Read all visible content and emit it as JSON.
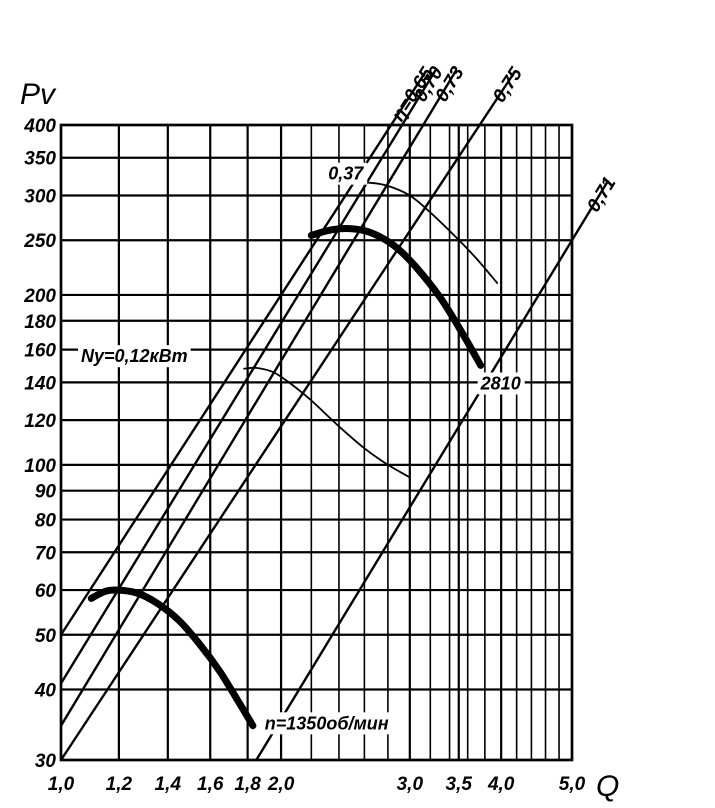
{
  "chart_data": {
    "type": "line",
    "title": "",
    "xlabel": "Q",
    "ylabel": "Pv",
    "x_scale": "log",
    "y_scale": "log",
    "xlim": [
      1.0,
      5.0
    ],
    "ylim": [
      30,
      400
    ],
    "x_ticks": [
      1.0,
      1.2,
      1.4,
      1.6,
      1.8,
      2.0,
      3.0,
      3.5,
      4.0,
      5.0
    ],
    "x_tick_labels": [
      "1,0",
      "1,2",
      "1,4",
      "1,6",
      "1,8",
      "2,0",
      "3,0",
      "3,5",
      "4,0",
      "5,0"
    ],
    "x_minor_grid": [
      2.2,
      2.4,
      2.6,
      2.8,
      3.2,
      3.4,
      3.6,
      3.8,
      4.2,
      4.4,
      4.6,
      4.8
    ],
    "y_ticks": [
      30,
      40,
      50,
      60,
      70,
      80,
      90,
      100,
      120,
      140,
      160,
      180,
      200,
      250,
      300,
      350,
      400
    ],
    "y_tick_labels": [
      "30",
      "40",
      "50",
      "60",
      "70",
      "80",
      "90",
      "100",
      "120",
      "140",
      "160",
      "180",
      "200",
      "250",
      "300",
      "350",
      "400"
    ],
    "grid": true,
    "series": [
      {
        "name": "n=1350об/мин",
        "style": "thick",
        "x": [
          1.1,
          1.15,
          1.2,
          1.27,
          1.35,
          1.45,
          1.55,
          1.65,
          1.75,
          1.83
        ],
        "y": [
          58,
          59.7,
          60,
          59.3,
          57,
          53,
          48,
          43,
          38,
          34.5
        ]
      },
      {
        "name": "2810",
        "style": "thick",
        "x": [
          2.2,
          2.35,
          2.5,
          2.65,
          2.85,
          3.05,
          3.3,
          3.55,
          3.75
        ],
        "y": [
          255,
          261,
          262,
          258,
          245,
          225,
          198,
          170,
          150
        ]
      },
      {
        "name": "Ny=0,12кВт",
        "style": "thin",
        "x": [
          1.78,
          1.85,
          1.95,
          2.05,
          2.2,
          2.4,
          2.6,
          2.8,
          3.0
        ],
        "y": [
          148,
          148.5,
          146,
          140,
          130,
          117,
          107,
          100,
          95
        ]
      },
      {
        "name": "0,37",
        "style": "thin",
        "x": [
          2.55,
          2.65,
          2.8,
          3.0,
          3.2,
          3.45,
          3.7,
          3.95
        ],
        "y": [
          315,
          316,
          312,
          300,
          280,
          255,
          232,
          210
        ]
      }
    ],
    "efficiency_lines": [
      {
        "label": "η=0,65",
        "x": [
          1.0,
          2.8
        ],
        "y": [
          50,
          392
        ]
      },
      {
        "label": "0,70",
        "x": [
          1.0,
          2.9
        ],
        "y": [
          41,
          392
        ]
      },
      {
        "label": "0,73",
        "x": [
          1.0,
          3.1
        ],
        "y": [
          34.5,
          392
        ]
      },
      {
        "label": "0,75",
        "x": [
          1.0,
          3.7
        ],
        "y": [
          30,
          392
        ]
      },
      {
        "label": "0,71",
        "x": [
          1.85,
          5.0
        ],
        "y": [
          30,
          250
        ]
      }
    ],
    "annotations": [
      {
        "text": "Ny=0,12кВт",
        "x": 1.065,
        "y": 152
      },
      {
        "text": "0,37",
        "x": 2.32,
        "y": 320
      },
      {
        "text": "2810",
        "x": 3.75,
        "y": 136
      },
      {
        "text": "n=1350об/мин",
        "x": 1.9,
        "y": 34
      }
    ]
  }
}
